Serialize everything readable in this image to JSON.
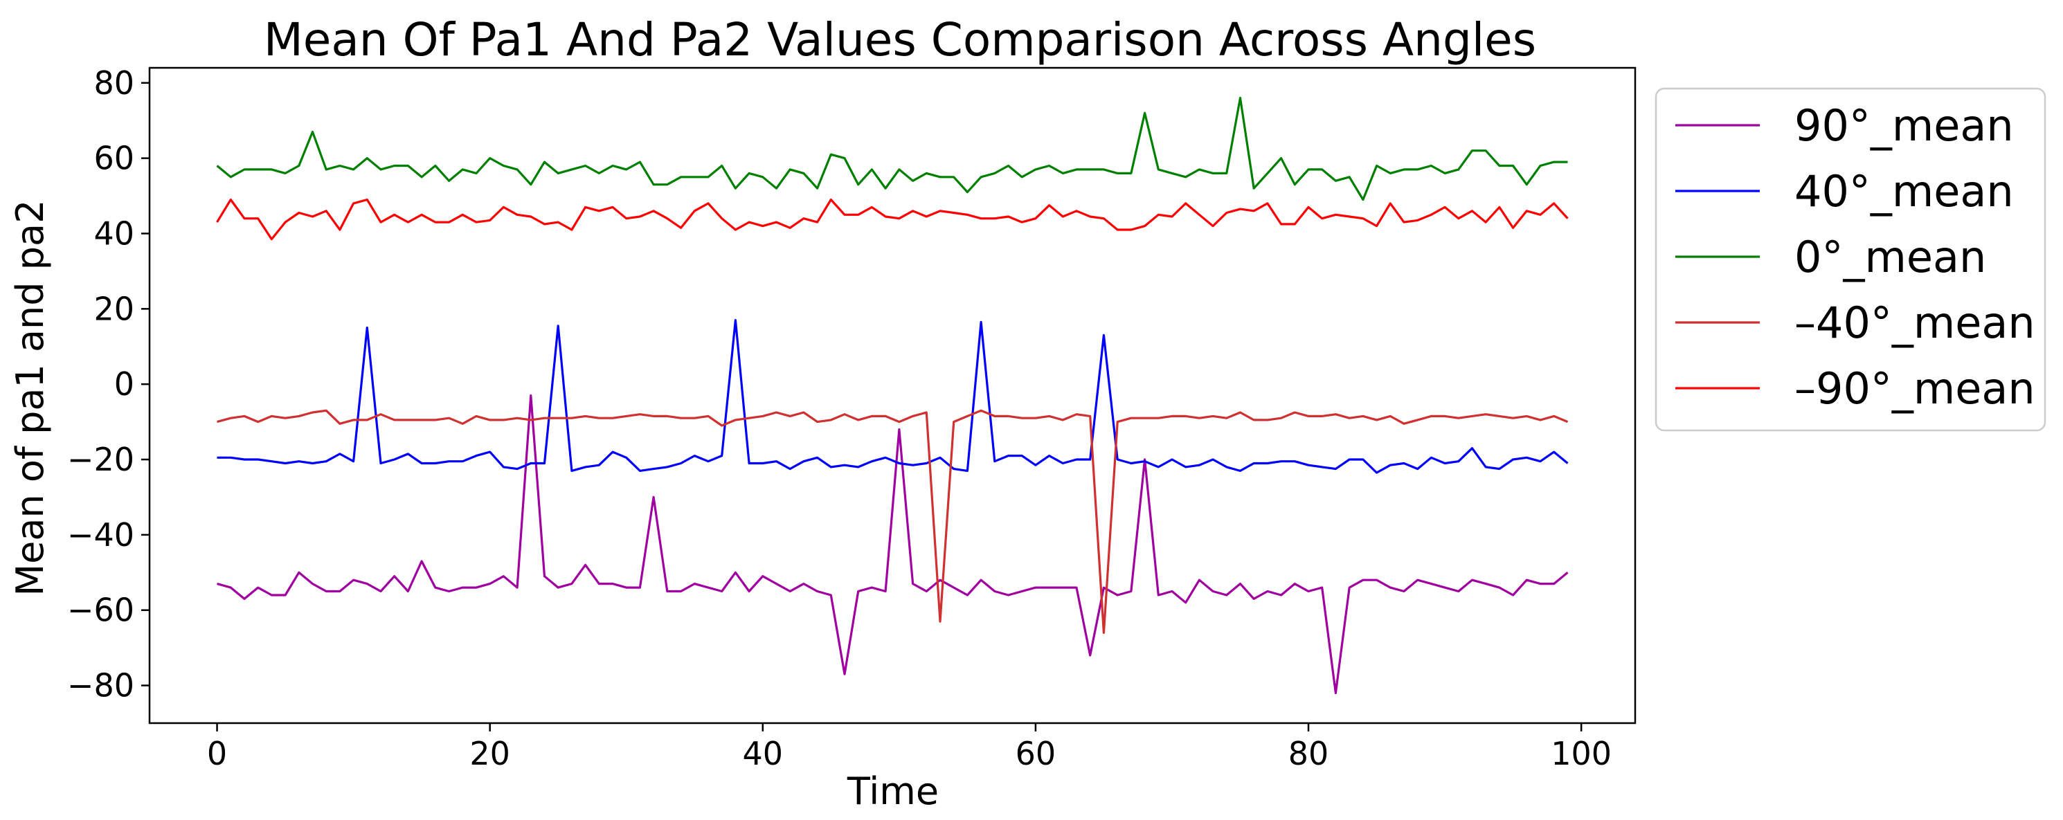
{
  "chart_data": {
    "type": "line",
    "title": "Mean Of Pa1 And Pa2 Values Comparison Across Angles",
    "xlabel": "Time",
    "ylabel": "Mean of pa1 and pa2",
    "xlim": [
      -4.95,
      103.95
    ],
    "ylim": [
      -90,
      84
    ],
    "xticks": [
      0,
      20,
      40,
      60,
      80,
      100
    ],
    "yticks": [
      -80,
      -60,
      -40,
      -20,
      0,
      20,
      40,
      60,
      80
    ],
    "ytick_labels": [
      "−80",
      "−60",
      "−40",
      "−20",
      "0",
      "20",
      "40",
      "60",
      "80"
    ],
    "legend_position": "outside upper right",
    "grid": false,
    "x": [
      0,
      1,
      2,
      3,
      4,
      5,
      6,
      7,
      8,
      9,
      10,
      11,
      12,
      13,
      14,
      15,
      16,
      17,
      18,
      19,
      20,
      21,
      22,
      23,
      24,
      25,
      26,
      27,
      28,
      29,
      30,
      31,
      32,
      33,
      34,
      35,
      36,
      37,
      38,
      39,
      40,
      41,
      42,
      43,
      44,
      45,
      46,
      47,
      48,
      49,
      50,
      51,
      52,
      53,
      54,
      55,
      56,
      57,
      58,
      59,
      60,
      61,
      62,
      63,
      64,
      65,
      66,
      67,
      68,
      69,
      70,
      71,
      72,
      73,
      74,
      75,
      76,
      77,
      78,
      79,
      80,
      81,
      82,
      83,
      84,
      85,
      86,
      87,
      88,
      89,
      90,
      91,
      92,
      93,
      94,
      95,
      96,
      97,
      98,
      99
    ],
    "series": [
      {
        "name": "90°_mean",
        "color": "#a000a0",
        "values": [
          -53,
          -54,
          -57,
          -54,
          -56,
          -56,
          -50,
          -53,
          -55,
          -55,
          -52,
          -53,
          -55,
          -51,
          -55,
          -47,
          -54,
          -55,
          -54,
          -54,
          -53,
          -51,
          -54,
          -3,
          -51,
          -54,
          -53,
          -48,
          -53,
          -53,
          -54,
          -54,
          -30,
          -55,
          -55,
          -53,
          -54,
          -55,
          -50,
          -55,
          -51,
          -53,
          -55,
          -53,
          -55,
          -56,
          -77,
          -55,
          -54,
          -55,
          -12,
          -53,
          -55,
          -52,
          -54,
          -56,
          -52,
          -55,
          -56,
          -55,
          -54,
          -54,
          -54,
          -54,
          -72,
          -54,
          -56,
          -55,
          -20,
          -56,
          -55,
          -58,
          -52,
          -55,
          -56,
          -53,
          -57,
          -55,
          -56,
          -53,
          -55,
          -54,
          -82,
          -54,
          -52,
          -52,
          -54,
          -55,
          -52,
          -53,
          -54,
          -55,
          -52,
          -53,
          -54,
          -56,
          -52,
          -53,
          -53,
          -50
        ]
      },
      {
        "name": "40°_mean",
        "color": "#0000ff",
        "values": [
          -19.5,
          -19.5,
          -20,
          -20,
          -20.5,
          -21,
          -20.5,
          -21,
          -20.5,
          -18.5,
          -20.5,
          15,
          -21,
          -20,
          -18.5,
          -21,
          -21,
          -20.5,
          -20.5,
          -19,
          -18,
          -22,
          -22.5,
          -21,
          -21,
          15.5,
          -23,
          -22,
          -21.5,
          -18,
          -19.5,
          -23,
          -22.5,
          -22,
          -21,
          -19,
          -20.5,
          -19,
          17,
          -21,
          -21,
          -20.5,
          -22.5,
          -20.5,
          -19.5,
          -22,
          -21.5,
          -22,
          -20.5,
          -19.5,
          -21,
          -21.5,
          -21,
          -19.5,
          -22.5,
          -23,
          16.5,
          -20.5,
          -19,
          -19,
          -21.5,
          -19,
          -21,
          -20,
          -20,
          13,
          -20,
          -21,
          -20.5,
          -22,
          -20,
          -22,
          -21.5,
          -20,
          -22,
          -23,
          -21,
          -21,
          -20.5,
          -20.5,
          -21.5,
          -22,
          -22.5,
          -20,
          -20,
          -23.5,
          -21.5,
          -21,
          -22.5,
          -19.5,
          -21,
          -20.5,
          -17,
          -22,
          -22.5,
          -20,
          -19.5,
          -20.5,
          -18,
          -21
        ]
      },
      {
        "name": "0°_mean",
        "color": "#008000",
        "values": [
          58,
          55,
          57,
          57,
          57,
          56,
          58,
          67,
          57,
          58,
          57,
          60,
          57,
          58,
          58,
          55,
          58,
          54,
          57,
          56,
          60,
          58,
          57,
          53,
          59,
          56,
          57,
          58,
          56,
          58,
          57,
          59,
          53,
          53,
          55,
          55,
          55,
          58,
          52,
          56,
          55,
          52,
          57,
          56,
          52,
          61,
          60,
          53,
          57,
          52,
          57,
          54,
          56,
          55,
          55,
          51,
          55,
          56,
          58,
          55,
          57,
          58,
          56,
          57,
          57,
          57,
          56,
          56,
          72,
          57,
          56,
          55,
          57,
          56,
          56,
          76,
          52,
          56,
          60,
          53,
          57,
          57,
          54,
          55,
          49,
          58,
          56,
          57,
          57,
          58,
          56,
          57,
          62,
          62,
          58,
          58,
          53,
          58,
          59,
          59
        ]
      },
      {
        "name": "–40°_mean",
        "color": "#d03030",
        "values": [
          -10,
          -9,
          -8.5,
          -10,
          -8.5,
          -9,
          -8.5,
          -7.5,
          -7,
          -10.5,
          -9.5,
          -9.5,
          -8,
          -9.5,
          -9.5,
          -9.5,
          -9.5,
          -9,
          -10.5,
          -8.5,
          -9.5,
          -9.5,
          -9,
          -9.5,
          -9,
          -9,
          -9,
          -8.5,
          -9,
          -9,
          -8.5,
          -8,
          -8.5,
          -8.5,
          -9,
          -9,
          -8.5,
          -11,
          -9.5,
          -9,
          -8.5,
          -7.5,
          -8.5,
          -7.5,
          -10,
          -9.5,
          -8,
          -9.5,
          -8.5,
          -8.5,
          -10,
          -8.5,
          -7.5,
          -63,
          -10,
          -8.5,
          -7,
          -8.5,
          -8.5,
          -9,
          -9,
          -8.5,
          -9.5,
          -8,
          -8.5,
          -66,
          -10,
          -9,
          -9,
          -9,
          -8.5,
          -8.5,
          -9,
          -8.5,
          -9,
          -7.5,
          -9.5,
          -9.5,
          -9,
          -7.5,
          -8.5,
          -8.5,
          -8,
          -9,
          -8.5,
          -9.5,
          -8.5,
          -10.5,
          -9.5,
          -8.5,
          -8.5,
          -9,
          -8.5,
          -8,
          -8.5,
          -9,
          -8.5,
          -9.5,
          -8.5,
          -10
        ]
      },
      {
        "name": "–90°_mean",
        "color": "#ff0000",
        "values": [
          43,
          49,
          44,
          44,
          38.5,
          43,
          45.5,
          44.5,
          46,
          41,
          48,
          49,
          43,
          45,
          43,
          45,
          43,
          43,
          45,
          43,
          43.5,
          47,
          45,
          44.5,
          42.5,
          43,
          41,
          47,
          46,
          47,
          44,
          44.5,
          46,
          44,
          41.5,
          46,
          48,
          44,
          41,
          43,
          42,
          43,
          41.5,
          44,
          43,
          49,
          45,
          45,
          47,
          44.5,
          44,
          46,
          44.5,
          46,
          45.5,
          45,
          44,
          44,
          44.5,
          43,
          44,
          47.5,
          44.5,
          46,
          44.5,
          44,
          41,
          41,
          42,
          45,
          44.5,
          48,
          45,
          42,
          45.5,
          46.5,
          46,
          48,
          42.5,
          42.5,
          47,
          44,
          45,
          44.5,
          44,
          42,
          48,
          43,
          43.5,
          45,
          47,
          44,
          46,
          43,
          47,
          41.5,
          46,
          45,
          48,
          44
        ]
      }
    ]
  }
}
